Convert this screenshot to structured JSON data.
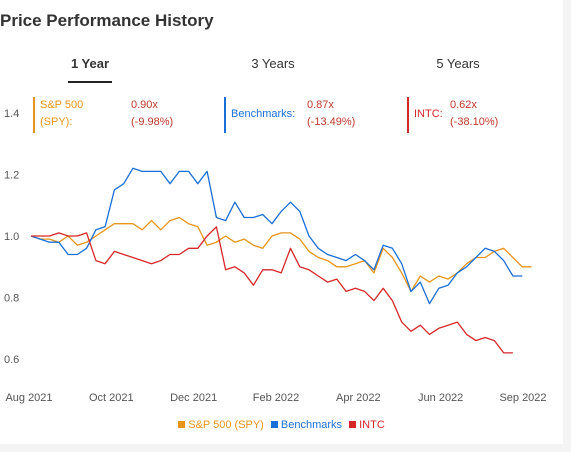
{
  "page_title": "Price Performance History",
  "tabs": [
    {
      "label": "1 Year",
      "active": true
    },
    {
      "label": "3 Years",
      "active": false
    },
    {
      "label": "5 Years",
      "active": false
    }
  ],
  "summary": [
    {
      "name": "S&P 500",
      "symbol": "(SPY):",
      "ratio": "0.90x",
      "change": "(-9.98%)",
      "color": "#e8941a"
    },
    {
      "name": "Benchmarks:",
      "ratio": "0.87x",
      "change": "(-13.49%)",
      "color": "#1a6fd6"
    },
    {
      "name": "INTC:",
      "ratio": "0.62x",
      "change": "(-38.10%)",
      "color": "#d62728"
    }
  ],
  "colors": {
    "spy": "#e8941a",
    "benchmarks": "#1a6fd6",
    "intc": "#d62728",
    "ratio_text": "#c0392b"
  },
  "chart_data": {
    "type": "line",
    "x_tick_labels": [
      "Aug 2021",
      "Oct 2021",
      "Dec 2021",
      "Feb 2022",
      "Apr 2022",
      "Jun 2022",
      "Sep 2022"
    ],
    "y_tick_labels": [
      "0.6",
      "0.8",
      "1.0",
      "1.2",
      "1.4"
    ],
    "ylim": [
      0.55,
      1.45
    ],
    "x_range": [
      0,
      56
    ],
    "grid": false,
    "legend_position": "bottom",
    "series": [
      {
        "name": "S&P 500 (SPY)",
        "color": "#e8941a",
        "values": [
          1.0,
          0.99,
          0.99,
          0.98,
          1.0,
          0.97,
          0.98,
          1.0,
          1.02,
          1.04,
          1.04,
          1.04,
          1.02,
          1.05,
          1.02,
          1.05,
          1.06,
          1.04,
          1.03,
          0.97,
          0.98,
          1.0,
          0.98,
          0.99,
          0.97,
          0.96,
          1.0,
          1.01,
          1.01,
          0.99,
          0.95,
          0.93,
          0.92,
          0.9,
          0.9,
          0.91,
          0.92,
          0.88,
          0.96,
          0.93,
          0.88,
          0.82,
          0.87,
          0.85,
          0.87,
          0.86,
          0.88,
          0.91,
          0.93,
          0.93,
          0.95,
          0.96,
          0.93,
          0.9,
          0.9
        ]
      },
      {
        "name": "Benchmarks",
        "color": "#1a6fd6",
        "values": [
          1.0,
          0.99,
          0.98,
          0.98,
          0.94,
          0.94,
          0.96,
          1.02,
          1.03,
          1.15,
          1.17,
          1.22,
          1.21,
          1.21,
          1.21,
          1.17,
          1.21,
          1.21,
          1.17,
          1.21,
          1.06,
          1.05,
          1.11,
          1.06,
          1.06,
          1.07,
          1.04,
          1.08,
          1.11,
          1.08,
          1.0,
          0.96,
          0.94,
          0.93,
          0.92,
          0.94,
          0.92,
          0.89,
          0.97,
          0.96,
          0.91,
          0.82,
          0.85,
          0.78,
          0.83,
          0.84,
          0.88,
          0.9,
          0.93,
          0.96,
          0.95,
          0.92,
          0.87,
          0.87
        ]
      },
      {
        "name": "INTC",
        "color": "#d62728",
        "values": [
          1.0,
          1.0,
          1.0,
          1.01,
          1.0,
          1.0,
          1.01,
          0.92,
          0.91,
          0.95,
          0.94,
          0.93,
          0.92,
          0.91,
          0.92,
          0.94,
          0.94,
          0.96,
          0.96,
          1.0,
          1.03,
          0.89,
          0.9,
          0.88,
          0.84,
          0.89,
          0.89,
          0.88,
          0.96,
          0.9,
          0.89,
          0.87,
          0.85,
          0.86,
          0.82,
          0.83,
          0.82,
          0.79,
          0.83,
          0.79,
          0.72,
          0.69,
          0.71,
          0.68,
          0.7,
          0.71,
          0.72,
          0.68,
          0.66,
          0.67,
          0.66,
          0.62,
          0.62
        ]
      }
    ]
  }
}
